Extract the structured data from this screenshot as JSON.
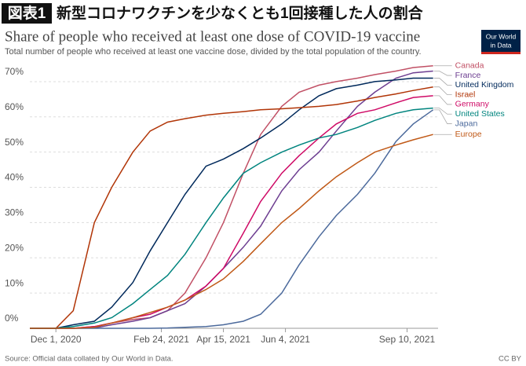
{
  "header": {
    "badge": "図表1",
    "title": "新型コロナワクチンを少なくとも1回接種した人の割合"
  },
  "chart_data": {
    "type": "line",
    "title": "Share of people who received at least one dose of COVID-19 vaccine",
    "subtitle": "Total number of people who received at least one vaccine dose, divided by the total population of the country.",
    "source": "Source: Official data collated by Our World in Data.",
    "license": "CC BY",
    "logo": [
      "Our World",
      "in Data"
    ],
    "x": [
      "2020-11-10",
      "2020-12-01",
      "2020-12-15",
      "2021-01-01",
      "2021-01-15",
      "2021-02-01",
      "2021-02-15",
      "2021-03-01",
      "2021-03-15",
      "2021-04-01",
      "2021-04-15",
      "2021-05-01",
      "2021-05-15",
      "2021-06-01",
      "2021-06-15",
      "2021-07-01",
      "2021-07-15",
      "2021-08-01",
      "2021-08-15",
      "2021-09-01",
      "2021-09-15",
      "2021-10-01"
    ],
    "xlim": [
      "2020-11-10",
      "2021-10-05"
    ],
    "xticks": [
      {
        "value": "2020-12-01",
        "label": "Dec 1, 2020"
      },
      {
        "value": "2021-02-24",
        "label": "Feb 24, 2021"
      },
      {
        "value": "2021-04-15",
        "label": "Apr 15, 2021"
      },
      {
        "value": "2021-06-04",
        "label": "Jun 4, 2021"
      },
      {
        "value": "2021-09-10",
        "label": "Sep 10, 2021"
      }
    ],
    "ylim": [
      0,
      74
    ],
    "yticks": [
      {
        "value": 0,
        "label": "0%"
      },
      {
        "value": 10,
        "label": "10%"
      },
      {
        "value": 20,
        "label": "20%"
      },
      {
        "value": 30,
        "label": "30%"
      },
      {
        "value": 40,
        "label": "40%"
      },
      {
        "value": 50,
        "label": "50%"
      },
      {
        "value": 60,
        "label": "60%"
      },
      {
        "value": 70,
        "label": "70%"
      }
    ],
    "grid": true,
    "series": [
      {
        "name": "Canada",
        "color": "#c15065",
        "values": [
          0,
          0,
          0,
          0.5,
          1.5,
          2.5,
          3,
          5,
          10,
          20,
          30,
          44,
          55,
          63,
          67,
          69,
          70,
          71,
          72,
          73,
          74,
          74.5
        ]
      },
      {
        "name": "France",
        "color": "#6d3e91",
        "values": [
          0,
          0,
          0,
          0.1,
          1,
          2,
          3,
          5,
          7,
          12,
          17,
          23,
          29,
          39,
          45,
          50,
          56,
          63,
          67,
          71,
          72.5,
          73
        ]
      },
      {
        "name": "United Kingdom",
        "color": "#00295b",
        "values": [
          0,
          0,
          1,
          2,
          6,
          13,
          22,
          30,
          38,
          46,
          48,
          51,
          54,
          58,
          62,
          66,
          68,
          69,
          70,
          70.5,
          71,
          71
        ]
      },
      {
        "name": "Israel",
        "color": "#b13507",
        "values": [
          0,
          0,
          5,
          30,
          40,
          50,
          56,
          58.5,
          59.5,
          60.5,
          61,
          61.5,
          62,
          62.3,
          62.6,
          63,
          63.5,
          64.5,
          65.5,
          66.5,
          67.5,
          68.5
        ]
      },
      {
        "name": "Germany",
        "color": "#cf0a66",
        "values": [
          0,
          0,
          0,
          0.5,
          1.5,
          3,
          4,
          6,
          8,
          12,
          17,
          27,
          36,
          44,
          49,
          54,
          58,
          61,
          62,
          64,
          65.5,
          66
        ]
      },
      {
        "name": "Japan",
        "color": "#4c6a9c",
        "values": [
          0,
          0,
          0,
          0,
          0,
          0,
          0,
          0.1,
          0.3,
          0.5,
          1,
          2,
          4,
          10,
          18,
          26,
          32,
          38,
          44,
          53,
          58,
          62
        ]
      },
      {
        "name": "United States",
        "color": "#00847e",
        "values": [
          0,
          0,
          0.5,
          1.5,
          3,
          7,
          11,
          15,
          21,
          30,
          37,
          44,
          47,
          50,
          52,
          54,
          55,
          57,
          59,
          61,
          62,
          62.5
        ]
      },
      {
        "name": "Europe",
        "color": "#c05917",
        "values": [
          0,
          0,
          0,
          0.3,
          1.5,
          3,
          4.5,
          6,
          8,
          11,
          14,
          19,
          24,
          30,
          34,
          39,
          43,
          47,
          50,
          52,
          53.5,
          55
        ]
      }
    ]
  }
}
